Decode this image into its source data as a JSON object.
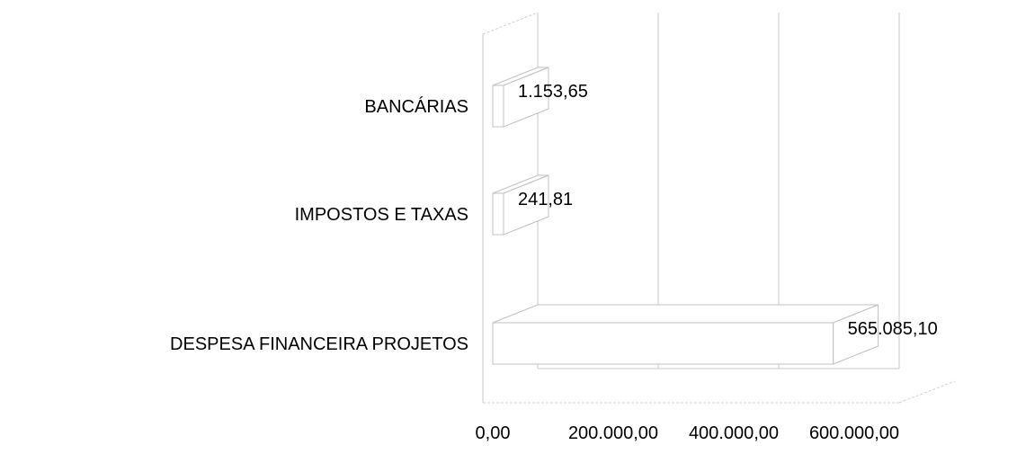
{
  "chart_data": {
    "type": "bar",
    "orientation": "horizontal",
    "style": "3d",
    "categories": [
      "BANCÁRIAS",
      "IMPOSTOS E TAXAS",
      "DESPESA FINANCEIRA PROJETOS"
    ],
    "values": [
      1153.65,
      241.81,
      565085.1
    ],
    "value_labels": [
      "1.153,65",
      "241,81",
      "565.085,10"
    ],
    "x_ticks": [
      0,
      200000,
      400000,
      600000
    ],
    "x_tick_labels": [
      "0,00",
      "200.000,00",
      "400.000,00",
      "600.000,00"
    ],
    "xlim": [
      0,
      600000
    ],
    "grid": true,
    "legend": "none",
    "colors": {
      "bar_fill": "#ffffff",
      "outline": "#c0c0c0",
      "text": "#000000"
    }
  }
}
